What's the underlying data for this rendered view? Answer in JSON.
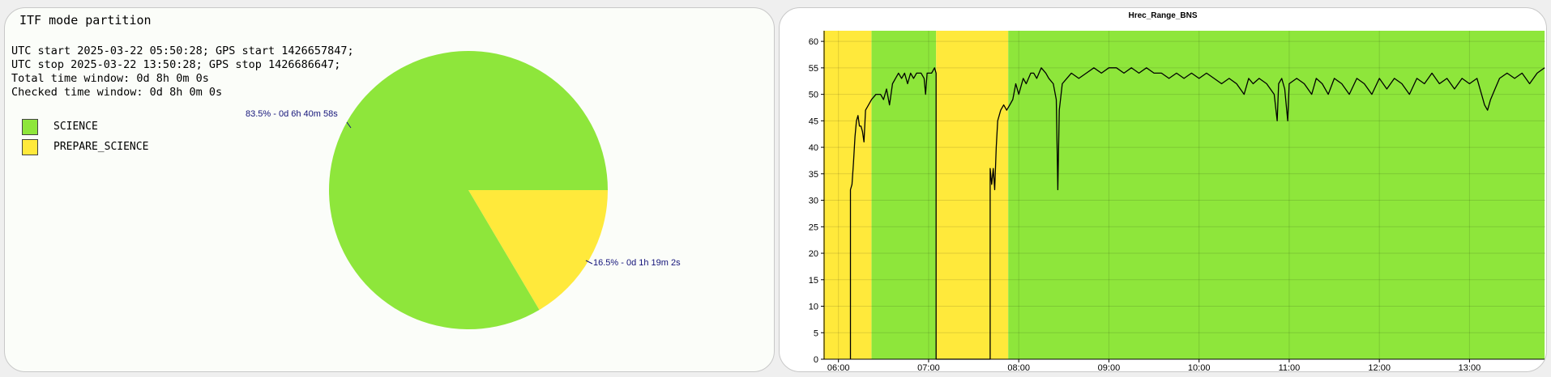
{
  "pie_panel": {
    "title": "ITF mode partition",
    "info_lines": [
      "UTC start 2025-03-22 05:50:28; GPS start 1426657847;",
      "UTC stop 2025-03-22 13:50:28; GPS stop 1426686647;",
      "Total time window: 0d 8h 0m 0s",
      "Checked time window: 0d 8h 0m 0s"
    ],
    "legend": [
      {
        "label": "SCIENCE",
        "color": "#8ee63b"
      },
      {
        "label": "PREPARE_SCIENCE",
        "color": "#ffe93b"
      }
    ]
  },
  "chart_data": [
    {
      "type": "pie",
      "slices": [
        {
          "name": "SCIENCE",
          "percent": 83.5,
          "label": "83.5% - 0d 6h 40m 58s",
          "color": "#8ee63b"
        },
        {
          "name": "PREPARE_SCIENCE",
          "percent": 16.5,
          "label": "16.5% - 0d 1h 19m 2s",
          "color": "#ffe93b"
        }
      ]
    },
    {
      "type": "line",
      "title": "Hrec_Range_BNS",
      "xlabel": "",
      "ylabel": "",
      "x_range": [
        "05:50:28",
        "13:50:28"
      ],
      "ylim": [
        0,
        62
      ],
      "x_ticks": [
        "06:00",
        "07:00",
        "08:00",
        "09:00",
        "10:00",
        "11:00",
        "12:00",
        "13:00"
      ],
      "y_ticks": [
        0,
        5,
        10,
        15,
        20,
        25,
        30,
        35,
        40,
        45,
        50,
        55,
        60
      ],
      "grid": true,
      "background_bands": [
        {
          "state": "PREPARE_SCIENCE",
          "start": "05:50",
          "end": "06:22",
          "color": "#ffe93b"
        },
        {
          "state": "SCIENCE",
          "start": "06:22",
          "end": "07:05",
          "color": "#8ee63b"
        },
        {
          "state": "PREPARE_SCIENCE",
          "start": "07:05",
          "end": "07:53",
          "color": "#ffe93b"
        },
        {
          "state": "SCIENCE",
          "start": "07:53",
          "end": "13:50",
          "color": "#8ee63b"
        }
      ],
      "series": [
        {
          "color": "#000000",
          "points": [
            [
              "06:08",
              0
            ],
            [
              "06:08",
              32
            ],
            [
              "06:09",
              33
            ],
            [
              "06:10",
              37
            ],
            [
              "06:11",
              42
            ],
            [
              "06:12",
              45
            ],
            [
              "06:13",
              46
            ],
            [
              "06:14",
              44
            ],
            [
              "06:15",
              44
            ],
            [
              "06:16",
              43
            ],
            [
              "06:17",
              41
            ],
            [
              "06:18",
              47
            ],
            [
              "06:20",
              48
            ],
            [
              "06:22",
              49
            ],
            [
              "06:25",
              50
            ],
            [
              "06:28",
              50
            ],
            [
              "06:30",
              49
            ],
            [
              "06:32",
              51
            ],
            [
              "06:34",
              48
            ],
            [
              "06:36",
              52
            ],
            [
              "06:38",
              53
            ],
            [
              "06:40",
              54
            ],
            [
              "06:42",
              53
            ],
            [
              "06:44",
              54
            ],
            [
              "06:46",
              52
            ],
            [
              "06:48",
              54
            ],
            [
              "06:50",
              53
            ],
            [
              "06:52",
              54
            ],
            [
              "06:55",
              54
            ],
            [
              "06:57",
              53
            ],
            [
              "06:58",
              50
            ],
            [
              "06:59",
              54
            ],
            [
              "07:02",
              54
            ],
            [
              "07:04",
              55
            ],
            [
              "07:05",
              54
            ],
            [
              "07:05",
              0
            ],
            [
              "07:41",
              0
            ],
            [
              "07:41",
              36
            ],
            [
              "07:42",
              33
            ],
            [
              "07:43",
              36
            ],
            [
              "07:44",
              32
            ],
            [
              "07:45",
              40
            ],
            [
              "07:46",
              45
            ],
            [
              "07:48",
              47
            ],
            [
              "07:50",
              48
            ],
            [
              "07:52",
              47
            ],
            [
              "07:54",
              48
            ],
            [
              "07:56",
              49
            ],
            [
              "07:58",
              52
            ],
            [
              "08:00",
              50
            ],
            [
              "08:03",
              53
            ],
            [
              "08:05",
              52
            ],
            [
              "08:08",
              54
            ],
            [
              "08:10",
              54
            ],
            [
              "08:12",
              53
            ],
            [
              "08:15",
              55
            ],
            [
              "08:18",
              54
            ],
            [
              "08:20",
              53
            ],
            [
              "08:23",
              52
            ],
            [
              "08:25",
              49
            ],
            [
              "08:26",
              32
            ],
            [
              "08:27",
              47
            ],
            [
              "08:29",
              52
            ],
            [
              "08:32",
              53
            ],
            [
              "08:35",
              54
            ],
            [
              "08:40",
              53
            ],
            [
              "08:45",
              54
            ],
            [
              "08:50",
              55
            ],
            [
              "08:55",
              54
            ],
            [
              "09:00",
              55
            ],
            [
              "09:05",
              55
            ],
            [
              "09:10",
              54
            ],
            [
              "09:15",
              55
            ],
            [
              "09:20",
              54
            ],
            [
              "09:25",
              55
            ],
            [
              "09:30",
              54
            ],
            [
              "09:35",
              54
            ],
            [
              "09:40",
              53
            ],
            [
              "09:45",
              54
            ],
            [
              "09:50",
              53
            ],
            [
              "09:55",
              54
            ],
            [
              "10:00",
              53
            ],
            [
              "10:05",
              54
            ],
            [
              "10:10",
              53
            ],
            [
              "10:15",
              52
            ],
            [
              "10:20",
              53
            ],
            [
              "10:25",
              52
            ],
            [
              "10:30",
              50
            ],
            [
              "10:33",
              53
            ],
            [
              "10:36",
              52
            ],
            [
              "10:40",
              53
            ],
            [
              "10:45",
              52
            ],
            [
              "10:50",
              50
            ],
            [
              "10:52",
              45
            ],
            [
              "10:53",
              52
            ],
            [
              "10:55",
              53
            ],
            [
              "10:57",
              51
            ],
            [
              "10:59",
              45
            ],
            [
              "11:00",
              52
            ],
            [
              "11:05",
              53
            ],
            [
              "11:10",
              52
            ],
            [
              "11:15",
              50
            ],
            [
              "11:18",
              53
            ],
            [
              "11:22",
              52
            ],
            [
              "11:26",
              50
            ],
            [
              "11:30",
              53
            ],
            [
              "11:35",
              52
            ],
            [
              "11:40",
              50
            ],
            [
              "11:45",
              53
            ],
            [
              "11:50",
              52
            ],
            [
              "11:55",
              50
            ],
            [
              "12:00",
              53
            ],
            [
              "12:05",
              51
            ],
            [
              "12:10",
              53
            ],
            [
              "12:15",
              52
            ],
            [
              "12:20",
              50
            ],
            [
              "12:25",
              53
            ],
            [
              "12:30",
              52
            ],
            [
              "12:35",
              54
            ],
            [
              "12:40",
              52
            ],
            [
              "12:45",
              53
            ],
            [
              "12:50",
              51
            ],
            [
              "12:55",
              53
            ],
            [
              "13:00",
              52
            ],
            [
              "13:05",
              53
            ],
            [
              "13:08",
              50
            ],
            [
              "13:10",
              48
            ],
            [
              "13:12",
              47
            ],
            [
              "13:14",
              49
            ],
            [
              "13:17",
              51
            ],
            [
              "13:20",
              53
            ],
            [
              "13:25",
              54
            ],
            [
              "13:30",
              53
            ],
            [
              "13:35",
              54
            ],
            [
              "13:40",
              52
            ],
            [
              "13:45",
              54
            ],
            [
              "13:50",
              55
            ]
          ]
        }
      ]
    }
  ]
}
